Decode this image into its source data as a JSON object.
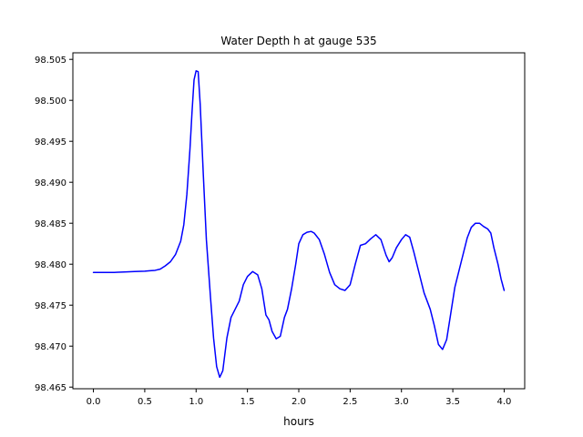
{
  "chart_data": {
    "type": "line",
    "title": "Water Depth h at gauge 535",
    "xlabel": "hours",
    "ylabel": "",
    "xlim": [
      -0.2,
      4.2
    ],
    "ylim": [
      98.4648,
      98.5058
    ],
    "x_ticks": [
      {
        "value": 0.0,
        "label": "0.0"
      },
      {
        "value": 0.5,
        "label": "0.5"
      },
      {
        "value": 1.0,
        "label": "1.0"
      },
      {
        "value": 1.5,
        "label": "1.5"
      },
      {
        "value": 2.0,
        "label": "2.0"
      },
      {
        "value": 2.5,
        "label": "2.5"
      },
      {
        "value": 3.0,
        "label": "3.0"
      },
      {
        "value": 3.5,
        "label": "3.5"
      },
      {
        "value": 4.0,
        "label": "4.0"
      }
    ],
    "y_ticks": [
      {
        "value": 98.465,
        "label": "98.465"
      },
      {
        "value": 98.47,
        "label": "98.470"
      },
      {
        "value": 98.475,
        "label": "98.475"
      },
      {
        "value": 98.48,
        "label": "98.480"
      },
      {
        "value": 98.485,
        "label": "98.485"
      },
      {
        "value": 98.49,
        "label": "98.490"
      },
      {
        "value": 98.495,
        "label": "98.495"
      },
      {
        "value": 98.5,
        "label": "98.500"
      },
      {
        "value": 98.505,
        "label": "98.505"
      }
    ],
    "grid": false,
    "colors": {
      "line": "#0000ff",
      "axes": "#000000",
      "background": "#ffffff"
    },
    "series": [
      {
        "name": "",
        "points": [
          [
            0.0,
            98.479
          ],
          [
            0.1,
            98.479
          ],
          [
            0.2,
            98.479
          ],
          [
            0.3,
            98.47905
          ],
          [
            0.4,
            98.4791
          ],
          [
            0.5,
            98.47915
          ],
          [
            0.55,
            98.4792
          ],
          [
            0.6,
            98.47925
          ],
          [
            0.65,
            98.4794
          ],
          [
            0.7,
            98.4798
          ],
          [
            0.75,
            98.4803
          ],
          [
            0.8,
            98.4812
          ],
          [
            0.85,
            98.4828
          ],
          [
            0.88,
            98.4848
          ],
          [
            0.91,
            98.4885
          ],
          [
            0.94,
            98.494
          ],
          [
            0.96,
            98.4985
          ],
          [
            0.98,
            98.5025
          ],
          [
            1.0,
            98.5036
          ],
          [
            1.02,
            98.5035
          ],
          [
            1.04,
            98.4995
          ],
          [
            1.07,
            98.491
          ],
          [
            1.1,
            98.483
          ],
          [
            1.14,
            98.476
          ],
          [
            1.17,
            98.471
          ],
          [
            1.2,
            98.4675
          ],
          [
            1.23,
            98.4662
          ],
          [
            1.26,
            98.467
          ],
          [
            1.3,
            98.471
          ],
          [
            1.34,
            98.4735
          ],
          [
            1.38,
            98.4745
          ],
          [
            1.42,
            98.4755
          ],
          [
            1.46,
            98.4775
          ],
          [
            1.5,
            98.4785
          ],
          [
            1.55,
            98.4791
          ],
          [
            1.6,
            98.4787
          ],
          [
            1.64,
            98.477
          ],
          [
            1.68,
            98.4738
          ],
          [
            1.71,
            98.4732
          ],
          [
            1.74,
            98.4718
          ],
          [
            1.78,
            98.4709
          ],
          [
            1.82,
            98.4712
          ],
          [
            1.86,
            98.4735
          ],
          [
            1.89,
            98.4745
          ],
          [
            1.93,
            98.477
          ],
          [
            1.97,
            98.48
          ],
          [
            2.0,
            98.4825
          ],
          [
            2.04,
            98.4836
          ],
          [
            2.08,
            98.4839
          ],
          [
            2.12,
            98.484
          ],
          [
            2.15,
            98.4838
          ],
          [
            2.2,
            98.483
          ],
          [
            2.25,
            98.4812
          ],
          [
            2.3,
            98.479
          ],
          [
            2.35,
            98.4775
          ],
          [
            2.4,
            98.477
          ],
          [
            2.45,
            98.4768
          ],
          [
            2.5,
            98.4775
          ],
          [
            2.55,
            98.48
          ],
          [
            2.6,
            98.4823
          ],
          [
            2.65,
            98.4825
          ],
          [
            2.7,
            98.4831
          ],
          [
            2.75,
            98.4836
          ],
          [
            2.8,
            98.483
          ],
          [
            2.85,
            98.4811
          ],
          [
            2.88,
            98.4803
          ],
          [
            2.91,
            98.4808
          ],
          [
            2.95,
            98.482
          ],
          [
            3.0,
            98.483
          ],
          [
            3.04,
            98.4836
          ],
          [
            3.08,
            98.4833
          ],
          [
            3.12,
            98.4815
          ],
          [
            3.18,
            98.4785
          ],
          [
            3.22,
            98.4765
          ],
          [
            3.28,
            98.4745
          ],
          [
            3.32,
            98.4725
          ],
          [
            3.36,
            98.4702
          ],
          [
            3.4,
            98.4696
          ],
          [
            3.44,
            98.4708
          ],
          [
            3.48,
            98.474
          ],
          [
            3.52,
            98.4772
          ],
          [
            3.56,
            98.4792
          ],
          [
            3.6,
            98.4812
          ],
          [
            3.64,
            98.4832
          ],
          [
            3.68,
            98.4845
          ],
          [
            3.72,
            98.485
          ],
          [
            3.76,
            98.485
          ],
          [
            3.8,
            98.4846
          ],
          [
            3.84,
            98.4843
          ],
          [
            3.87,
            98.4838
          ],
          [
            3.9,
            98.482
          ],
          [
            3.94,
            98.48
          ],
          [
            3.97,
            98.4782
          ],
          [
            4.0,
            98.4768
          ]
        ]
      }
    ]
  }
}
